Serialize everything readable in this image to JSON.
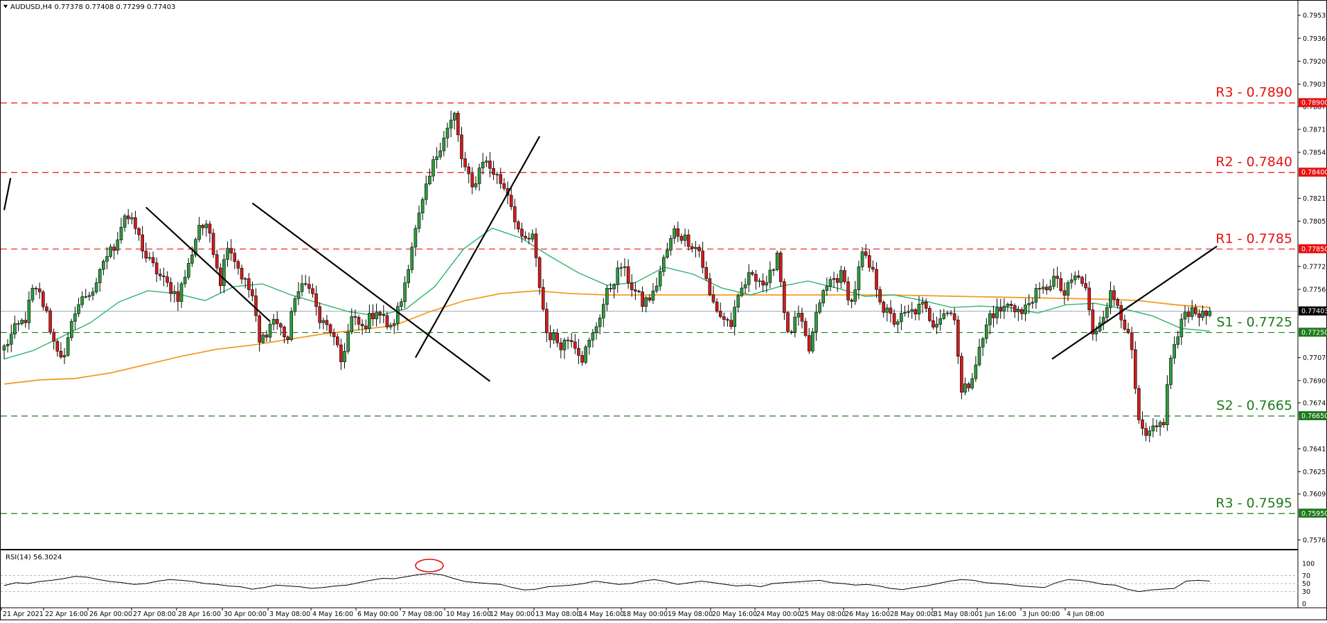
{
  "window": {
    "title": "AUDUSD,H4  0.77378 0.77408 0.77299 0.77403"
  },
  "rsi": {
    "label": "RSI(14) 56.3024",
    "levels": [
      100,
      70,
      50,
      30,
      0
    ],
    "level_labels": [
      "100",
      "70",
      "50",
      "30",
      "0"
    ]
  },
  "chart_data": {
    "type": "candlestick",
    "symbol": "AUDUSD",
    "timeframe": "H4",
    "ohlc_last": [
      0.77378,
      0.77408,
      0.77299,
      0.77403
    ],
    "current_price": 0.77403,
    "current_price_label": "0.77403",
    "ylim": [
      0.7571,
      0.7961
    ],
    "y_ticks": [
      0.7953,
      0.79365,
      0.792,
      0.79035,
      0.78875,
      0.7871,
      0.78545,
      0.78215,
      0.7805,
      0.77725,
      0.7756,
      0.7707,
      0.76905,
      0.76745,
      0.76415,
      0.7625,
      0.7609,
      0.7576
    ],
    "y_tick_labels": [
      "0.79530",
      "0.79365",
      "0.79200",
      "0.79035",
      "0.78875",
      "0.78710",
      "0.78545",
      "0.78215",
      "0.78050",
      "0.77725",
      "0.77560",
      "0.77070",
      "0.76905",
      "0.76745",
      "0.76415",
      "0.76250",
      "0.76090",
      "0.75760"
    ],
    "x_labels": [
      "21 Apr 2021",
      "22 Apr 16:00",
      "26 Apr 00:00",
      "27 Apr 08:00",
      "28 Apr 16:00",
      "30 Apr 00:00",
      "3 May 08:00",
      "4 May 16:00",
      "6 May 00:00",
      "7 May 08:00",
      "10 May 16:00",
      "12 May 00:00",
      "13 May 08:00",
      "14 May 16:00",
      "18 May 00:00",
      "19 May 08:00",
      "20 May 16:00",
      "24 May 00:00",
      "25 May 08:00",
      "26 May 16:00",
      "28 May 00:00",
      "31 May 08:00",
      "1 Jun 16:00",
      "3 Jun 00:00",
      "4 Jun 08:00"
    ],
    "levels": [
      {
        "name": "R3 - 0.7890",
        "value": 0.789,
        "color": "#e81010",
        "badge": "0.78900"
      },
      {
        "name": "R2 - 0.7840",
        "value": 0.784,
        "color": "#e81010",
        "badge": "0.78400"
      },
      {
        "name": "R1 - 0.7785",
        "value": 0.7785,
        "color": "#e81010",
        "badge": "0.77850"
      },
      {
        "name": "S1 - 0.7725",
        "value": 0.7725,
        "color": "#1d7a1d",
        "badge": "0.77250"
      },
      {
        "name": "S2 - 0.7665",
        "value": 0.7665,
        "color": "#1d7a1d",
        "badge": "0.76650"
      },
      {
        "name": "R3 - 0.7595",
        "value": 0.7595,
        "color": "#1d7a1d",
        "badge": "0.75950"
      }
    ],
    "ma_fast": [
      0.7706,
      0.7712,
      0.7722,
      0.7732,
      0.7747,
      0.7755,
      0.7753,
      0.7748,
      0.7758,
      0.776,
      0.7752,
      0.7746,
      0.774,
      0.7737,
      0.7742,
      0.7758,
      0.7785,
      0.78,
      0.7793,
      0.778,
      0.7768,
      0.7759,
      0.7761,
      0.7772,
      0.7767,
      0.7757,
      0.7752,
      0.7758,
      0.7762,
      0.7757,
      0.7751,
      0.7752,
      0.7748,
      0.7743,
      0.7744,
      0.7743,
      0.7739,
      0.7745,
      0.7746,
      0.7742,
      0.7737,
      0.7728,
      0.7726
    ],
    "ma_slow": [
      0.7688,
      0.7691,
      0.7692,
      0.7696,
      0.7702,
      0.7708,
      0.7713,
      0.7716,
      0.772,
      0.7724,
      0.7727,
      0.773,
      0.774,
      0.7748,
      0.7753,
      0.7755,
      0.7753,
      0.7752,
      0.7752,
      0.7752,
      0.7752,
      0.7752,
      0.7752,
      0.7752,
      0.7752,
      0.7752,
      0.77515,
      0.7751,
      0.77505,
      0.775,
      0.77495,
      0.7749,
      0.7748,
      0.7745,
      0.7743
    ],
    "trend_lines": [
      {
        "from": [
          0.0,
          0.7813
        ],
        "to": [
          1.8,
          0.7836
        ]
      },
      {
        "from": [
          40.0,
          0.7815
        ],
        "to": [
          75.0,
          0.7733
        ]
      },
      {
        "from": [
          70.0,
          0.7818
        ],
        "to": [
          137.0,
          0.769
        ]
      },
      {
        "from": [
          116.0,
          0.7707
        ],
        "to": [
          151.0,
          0.7866
        ]
      },
      {
        "from": [
          295.5,
          0.7706
        ],
        "to": [
          342.0,
          0.7787
        ]
      }
    ],
    "rsi_values": [
      45,
      52,
      50,
      55,
      58,
      62,
      68,
      66,
      60,
      55,
      52,
      48,
      50,
      56,
      60,
      58,
      55,
      50,
      48,
      44,
      42,
      36,
      40,
      46,
      44,
      42,
      38,
      40,
      44,
      46,
      52,
      58,
      63,
      62,
      67,
      72,
      75,
      72,
      63,
      55,
      52,
      50,
      48,
      40,
      34,
      36,
      42,
      44,
      46,
      50,
      56,
      52,
      48,
      50,
      56,
      60,
      55,
      48,
      52,
      56,
      52,
      48,
      44,
      46,
      42,
      50,
      52,
      54,
      56,
      58,
      52,
      50,
      46,
      48,
      44,
      38,
      35,
      40,
      44,
      50,
      56,
      60,
      58,
      52,
      50,
      48,
      44,
      42,
      40,
      52,
      60,
      58,
      54,
      48,
      46,
      36,
      30,
      34,
      36,
      38,
      56,
      58,
      56
    ]
  }
}
